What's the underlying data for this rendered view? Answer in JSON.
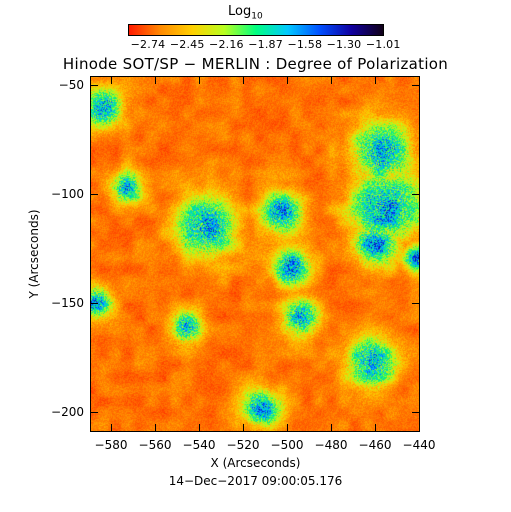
{
  "colorbar": {
    "title": "Log",
    "title_sub": "10",
    "gradient_stops": [
      "#ff1a00",
      "#ff8a00",
      "#ffd000",
      "#b8ff20",
      "#00ff80",
      "#00c8ff",
      "#0050ff",
      "#1000a0",
      "#100018"
    ],
    "ticks": [
      "−2.74",
      "−2.45",
      "−2.16",
      "−1.87",
      "−1.58",
      "−1.30",
      "−1.01"
    ]
  },
  "title": "Hinode SOT/SP − MERLIN : Degree of Polarization",
  "axes": {
    "xlabel": "X (Arcseconds)",
    "ylabel": "Y (Arcseconds)",
    "xticks": [
      "−580",
      "−560",
      "−540",
      "−520",
      "−500",
      "−480",
      "−460",
      "−440"
    ],
    "yticks": [
      "−50",
      "−100",
      "−150",
      "−200"
    ]
  },
  "timestamp": "14−Dec−2017 09:00:05.176"
}
